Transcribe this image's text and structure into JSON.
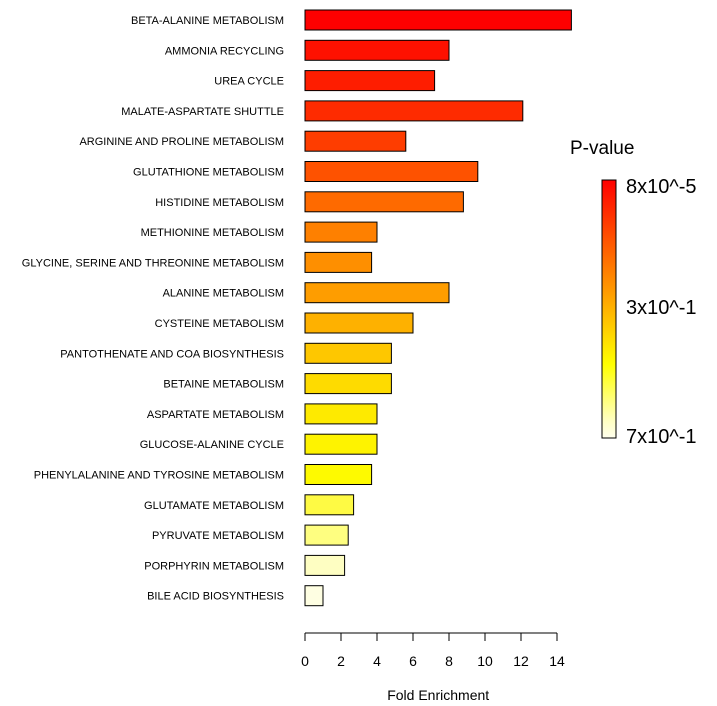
{
  "chart_data": {
    "type": "bar",
    "orientation": "horizontal",
    "title": "",
    "xlabel": "Fold Enrichment",
    "ylabel": "",
    "xlim": [
      0,
      15
    ],
    "x_ticks": [
      "0",
      "2",
      "4",
      "6",
      "8",
      "10",
      "12",
      "14"
    ],
    "grid": false,
    "categories": [
      "BETA-ALANINE METABOLISM",
      "AMMONIA RECYCLING",
      "UREA CYCLE",
      "MALATE-ASPARTATE SHUTTLE",
      "ARGININE AND PROLINE METABOLISM",
      "GLUTATHIONE METABOLISM",
      "HISTIDINE METABOLISM",
      "METHIONINE METABOLISM",
      "GLYCINE, SERINE AND THREONINE METABOLISM",
      "ALANINE METABOLISM",
      "CYSTEINE METABOLISM",
      "PANTOTHENATE AND COA BIOSYNTHESIS",
      "BETAINE METABOLISM",
      "ASPARTATE METABOLISM",
      "GLUCOSE-ALANINE CYCLE",
      "PHENYLALANINE AND TYROSINE METABOLISM",
      "GLUTAMATE METABOLISM",
      "PYRUVATE METABOLISM",
      "PORPHYRIN METABOLISM",
      "BILE ACID BIOSYNTHESIS"
    ],
    "values": [
      14.8,
      8.0,
      7.2,
      12.1,
      5.6,
      9.6,
      8.8,
      4.0,
      3.7,
      8.0,
      6.0,
      4.8,
      4.8,
      4.0,
      4.0,
      3.7,
      2.7,
      2.4,
      2.2,
      1.0
    ],
    "bar_colors": [
      "#fe0000",
      "#fe1100",
      "#fe1d00",
      "#fe2b00",
      "#fe3d00",
      "#fe5200",
      "#fe6a00",
      "#fe8000",
      "#fe8f00",
      "#fe9d00",
      "#feb100",
      "#fec700",
      "#fedb00",
      "#feea00",
      "#fef300",
      "#fefa00",
      "#fefa44",
      "#fefe80",
      "#fefec2",
      "#fefee2"
    ],
    "legend": {
      "title": "P-value",
      "labels": [
        "8x10^-5",
        "3x10^-1",
        "7x10^-1"
      ],
      "colors": [
        "#ff0000",
        "#ff1a00",
        "#ff3300",
        "#ff4d00",
        "#ff6600",
        "#ff8000",
        "#ff9900",
        "#ffb300",
        "#ffcc00",
        "#ffe600",
        "#ffff00",
        "#ffff40",
        "#ffff80",
        "#ffffbf",
        "#ffffee"
      ],
      "placement": "right"
    }
  }
}
